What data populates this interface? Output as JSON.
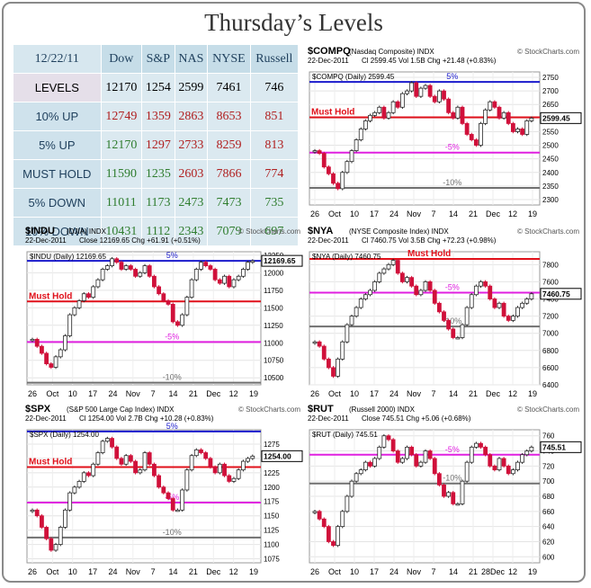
{
  "page_title": "Thursday’s Levels",
  "table": {
    "date": "12/22/11",
    "columns": [
      "Dow",
      "S&P",
      "NAS",
      "NYSE",
      "Russell"
    ],
    "rows": [
      {
        "label": "LEVELS",
        "values": [
          "12170",
          "1254",
          "2599",
          "7461",
          "746"
        ],
        "tone": "neutral"
      },
      {
        "label": "10% UP",
        "values": [
          "12749",
          "1359",
          "2863",
          "8653",
          "851"
        ],
        "tone": "up"
      },
      {
        "label": "5% UP",
        "values": [
          "12170",
          "1297",
          "2733",
          "8259",
          "813"
        ],
        "tone": "mixed"
      },
      {
        "label": "MUST HOLD",
        "values": [
          "11590",
          "1235",
          "2603",
          "7866",
          "774"
        ],
        "tone": "mixed2"
      },
      {
        "label": "5% DOWN",
        "values": [
          "11011",
          "1173",
          "2473",
          "7473",
          "735"
        ],
        "tone": "down"
      },
      {
        "label": "10% DOWN",
        "values": [
          "10431",
          "1112",
          "2343",
          "7079",
          "697"
        ],
        "tone": "down"
      }
    ]
  },
  "colors": {
    "up_candle": "#2a2a2a",
    "down_candle": "#d0103a",
    "blue_line": "#1a1acc",
    "red_line": "#e0101a",
    "magenta_line": "#e020e0",
    "gray_line": "#707070",
    "title": "#333333"
  },
  "chart_data": [
    {
      "id": "compq",
      "type": "line",
      "symbol": "$COMPQ",
      "name": "(Nasdaq Composite) INDX",
      "watermark": "© StockCharts.com",
      "date": "22-Dec-2011",
      "stats": "Cl 2599.45  Vol 1.5B  Chg +21.48 (+0.83%)",
      "legend": "$COMPQ (Daily) 2599.45",
      "last_label": "2599.45",
      "ylim": [
        2280,
        2770
      ],
      "yticks": [
        "2300",
        "2350",
        "2400",
        "2450",
        "2500",
        "2550",
        "2600",
        "2650",
        "2700",
        "2750"
      ],
      "xticks": [
        "26",
        "Oct",
        "10",
        "17",
        "24",
        "Nov",
        "7",
        "14",
        "21",
        "Dec",
        "12",
        "19"
      ],
      "levels": [
        {
          "value": 2733,
          "label": "5%",
          "kind": "blue"
        },
        {
          "value": 2603,
          "label": "Must Hold",
          "kind": "red"
        },
        {
          "value": 2473,
          "label": "-5%",
          "kind": "magenta"
        },
        {
          "value": 2343,
          "label": "-10%",
          "kind": "gray"
        }
      ],
      "series": [
        2480,
        2470,
        2420,
        2395,
        2360,
        2340,
        2400,
        2440,
        2480,
        2520,
        2560,
        2590,
        2610,
        2620,
        2640,
        2600,
        2620,
        2660,
        2640,
        2690,
        2700,
        2730,
        2680,
        2710,
        2720,
        2680,
        2660,
        2700,
        2670,
        2620,
        2600,
        2640,
        2580,
        2540,
        2520,
        2500,
        2580,
        2630,
        2660,
        2640,
        2600,
        2620,
        2580,
        2550,
        2560,
        2540,
        2590,
        2600
      ]
    },
    {
      "id": "indu",
      "type": "line",
      "symbol": "$INDU",
      "name": "(DJIA) INDX",
      "watermark": "© StockCharts.com",
      "date": "22-Dec-2011",
      "stats": "Close 12169.65  Chg +61.91 (+0.51%)",
      "legend": "$INDU (Daily) 12169.65",
      "last_label": "12169.65",
      "ylim": [
        10400,
        12300
      ],
      "yticks": [
        "10500",
        "10750",
        "11000",
        "11250",
        "11500",
        "11750",
        "12000",
        "12250"
      ],
      "xticks": [
        "26",
        "Oct",
        "10",
        "17",
        "24",
        "Nov",
        "7",
        "14",
        "21",
        "Dec",
        "12",
        "19"
      ],
      "levels": [
        {
          "value": 12170,
          "label": "5%",
          "kind": "blue"
        },
        {
          "value": 11590,
          "label": "Must Hold",
          "kind": "red"
        },
        {
          "value": 11011,
          "label": "-5%",
          "kind": "magenta"
        },
        {
          "value": 10431,
          "label": "-10%",
          "kind": "gray"
        }
      ],
      "series": [
        11050,
        10950,
        10850,
        10700,
        10650,
        10800,
        10900,
        11100,
        11400,
        11500,
        11600,
        11700,
        11650,
        11800,
        11900,
        12050,
        12100,
        12200,
        12150,
        12050,
        12100,
        12050,
        11950,
        12000,
        12100,
        11950,
        11800,
        11700,
        11600,
        11550,
        11300,
        11250,
        11400,
        11650,
        11900,
        12050,
        12150,
        12100,
        12050,
        11900,
        11850,
        11950,
        11800,
        11900,
        11950,
        12050,
        12150,
        12170
      ]
    },
    {
      "id": "nya",
      "type": "line",
      "symbol": "$NYA",
      "name": "(NYSE Composite Index) INDX",
      "watermark": "© StockCharts.com",
      "date": "22-Dec-2011",
      "stats": "Cl 7460.75  Vol 3.5B  Chg +72.23 (+0.98%)",
      "legend": "$NYA (Daily) 7460.75",
      "last_label": "7460.75",
      "ylim": [
        6400,
        7950
      ],
      "yticks": [
        "6400",
        "6600",
        "6800",
        "7000",
        "7200",
        "7400",
        "7600",
        "7800"
      ],
      "xticks": [
        "26",
        "Oct",
        "10",
        "17",
        "24",
        "Nov",
        "7",
        "14",
        "21",
        "Dec",
        "12",
        "19"
      ],
      "levels": [
        {
          "value": 7866,
          "label": "Must Hold",
          "kind": "red"
        },
        {
          "value": 7473,
          "label": "-5%",
          "kind": "magenta"
        },
        {
          "value": 7079,
          "label": "-10%",
          "kind": "gray"
        }
      ],
      "series": [
        6900,
        6850,
        6700,
        6600,
        6500,
        6700,
        6900,
        7100,
        7200,
        7300,
        7400,
        7450,
        7500,
        7600,
        7700,
        7750,
        7800,
        7850,
        7700,
        7600,
        7650,
        7550,
        7450,
        7500,
        7600,
        7500,
        7350,
        7250,
        7150,
        7050,
        6950,
        6950,
        7100,
        7300,
        7450,
        7550,
        7600,
        7550,
        7400,
        7300,
        7350,
        7200,
        7150,
        7200,
        7300,
        7350,
        7400,
        7460
      ]
    },
    {
      "id": "spx",
      "type": "line",
      "symbol": "$SPX",
      "name": "(S&P 500 Large Cap Index) INDX",
      "watermark": "© StockCharts.com",
      "date": "22-Dec-2011",
      "stats": "Cl 1254.00  Vol 2.7B  Chg +10.28 (+0.83%)",
      "legend": "$SPX (Daily) 1254.00",
      "last_label": "1254.00",
      "ylim": [
        1068,
        1300
      ],
      "yticks": [
        "1075",
        "1100",
        "1125",
        "1150",
        "1175",
        "1200",
        "1225",
        "1250",
        "1275"
      ],
      "xticks": [
        "26",
        "Oct",
        "10",
        "17",
        "24",
        "Nov",
        "7",
        "14",
        "21",
        "Dec",
        "12",
        "19"
      ],
      "levels": [
        {
          "value": 1297,
          "label": "5%",
          "kind": "blue"
        },
        {
          "value": 1235,
          "label": "Must Hold",
          "kind": "red"
        },
        {
          "value": 1173,
          "label": "-5%",
          "kind": "magenta"
        },
        {
          "value": 1112,
          "label": "-10%",
          "kind": "gray"
        }
      ],
      "series": [
        1160,
        1150,
        1130,
        1110,
        1090,
        1100,
        1130,
        1160,
        1190,
        1200,
        1210,
        1225,
        1220,
        1240,
        1260,
        1280,
        1285,
        1270,
        1250,
        1240,
        1255,
        1245,
        1225,
        1230,
        1260,
        1240,
        1220,
        1200,
        1190,
        1180,
        1160,
        1160,
        1195,
        1230,
        1255,
        1265,
        1260,
        1250,
        1235,
        1225,
        1240,
        1220,
        1210,
        1215,
        1230,
        1245,
        1250,
        1254
      ]
    },
    {
      "id": "rut",
      "type": "line",
      "symbol": "$RUT",
      "name": "(Russell 2000) INDX",
      "watermark": "© StockCharts.com",
      "date": "22-Dec-2011",
      "stats": "Close 745.51  Chg +5.06 (+0.68%)",
      "legend": "$RUT (Daily) 745.51",
      "last_label": "745.51",
      "ylim": [
        592,
        768
      ],
      "yticks": [
        "600",
        "620",
        "640",
        "660",
        "680",
        "700",
        "720",
        "740",
        "760"
      ],
      "xticks": [
        "26",
        "Oct",
        "10",
        "17",
        "24",
        "Nov",
        "7",
        "14",
        "21",
        "28Dec",
        "12",
        "19"
      ],
      "levels": [
        {
          "value": 774,
          "label": "Must Hold",
          "kind": "red"
        },
        {
          "value": 735,
          "label": "-5%",
          "kind": "magenta"
        },
        {
          "value": 697,
          "label": "-10%",
          "kind": "gray"
        }
      ],
      "series": [
        660,
        650,
        640,
        620,
        615,
        640,
        660,
        680,
        700,
        710,
        715,
        725,
        720,
        730,
        745,
        760,
        755,
        740,
        725,
        730,
        745,
        735,
        720,
        725,
        740,
        730,
        710,
        695,
        680,
        685,
        670,
        670,
        700,
        725,
        745,
        750,
        745,
        735,
        720,
        715,
        730,
        720,
        710,
        715,
        725,
        735,
        740,
        745
      ]
    }
  ]
}
